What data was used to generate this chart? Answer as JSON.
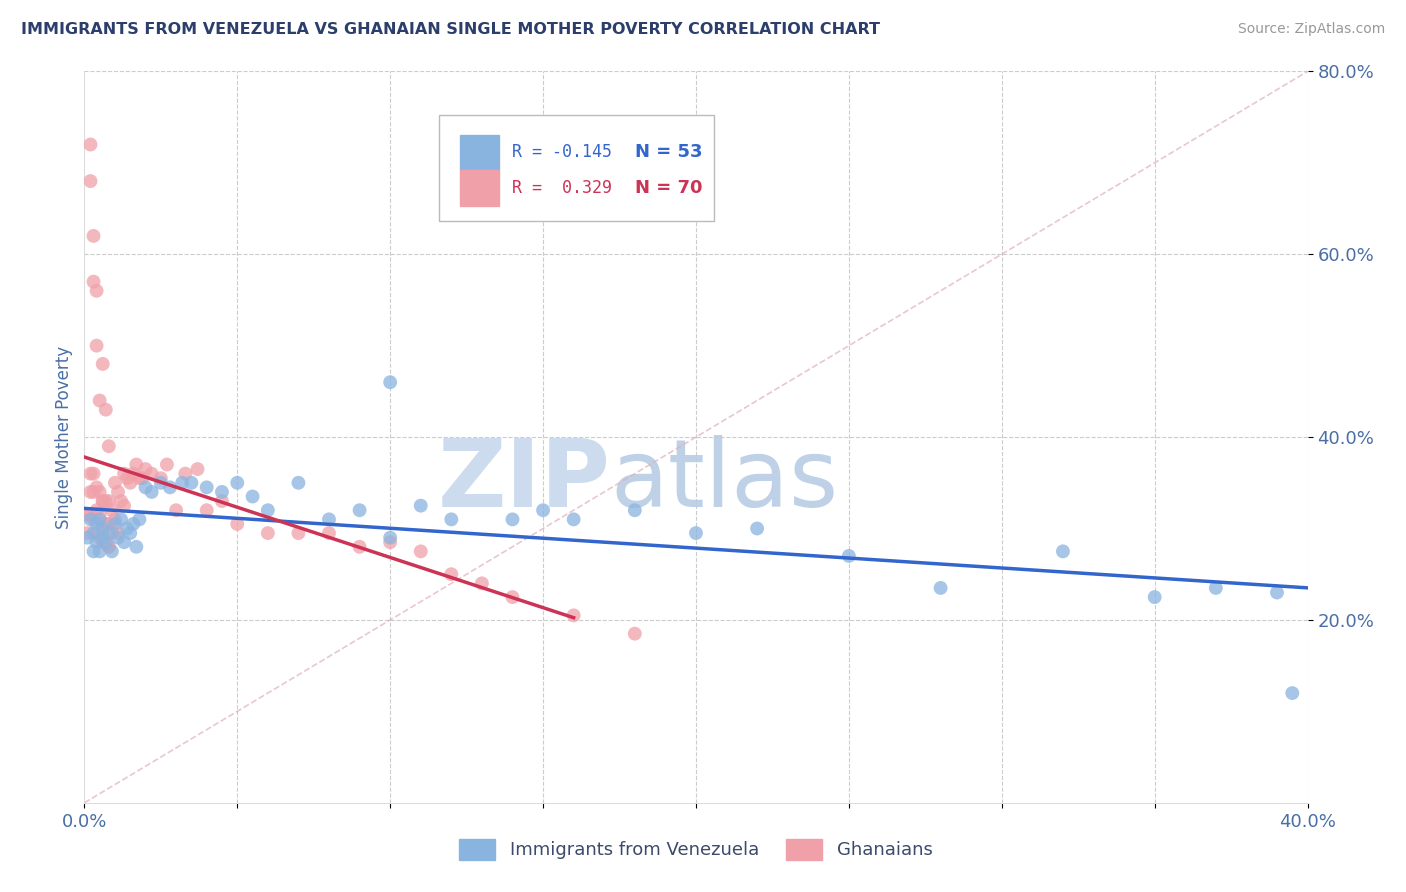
{
  "title": "IMMIGRANTS FROM VENEZUELA VS GHANAIAN SINGLE MOTHER POVERTY CORRELATION CHART",
  "source_text": "Source: ZipAtlas.com",
  "ylabel": "Single Mother Poverty",
  "xlim": [
    0.0,
    0.4
  ],
  "ylim": [
    0.0,
    0.8
  ],
  "xticks": [
    0.0,
    0.05,
    0.1,
    0.15,
    0.2,
    0.25,
    0.3,
    0.35,
    0.4
  ],
  "yticks": [
    0.2,
    0.4,
    0.6,
    0.8
  ],
  "ytick_labels": [
    "20.0%",
    "40.0%",
    "60.0%",
    "80.0%"
  ],
  "xtick_labels": [
    "0.0%",
    "",
    "",
    "",
    "",
    "",
    "",
    "",
    "40.0%"
  ],
  "color_blue": "#8ab4e0",
  "color_pink": "#f0a0a8",
  "color_trend_blue": "#3366cc",
  "color_trend_pink": "#cc3355",
  "color_tick_label": "#4a6fa5",
  "color_ylabel": "#4a6fa5",
  "color_grid": "#cccccc",
  "color_diagonal": "#e0b0b8",
  "watermark_zip": "ZIP",
  "watermark_atlas": "atlas",
  "watermark_color": "#d8e4f0",
  "blue_x": [
    0.001,
    0.002,
    0.003,
    0.003,
    0.004,
    0.004,
    0.005,
    0.005,
    0.006,
    0.006,
    0.007,
    0.008,
    0.009,
    0.01,
    0.011,
    0.012,
    0.013,
    0.014,
    0.015,
    0.016,
    0.017,
    0.018,
    0.02,
    0.022,
    0.025,
    0.028,
    0.032,
    0.035,
    0.04,
    0.045,
    0.05,
    0.055,
    0.06,
    0.07,
    0.08,
    0.09,
    0.1,
    0.11,
    0.12,
    0.14,
    0.15,
    0.16,
    0.18,
    0.2,
    0.22,
    0.25,
    0.28,
    0.32,
    0.35,
    0.37,
    0.39,
    0.395,
    0.1
  ],
  "blue_y": [
    0.29,
    0.31,
    0.295,
    0.275,
    0.305,
    0.285,
    0.31,
    0.275,
    0.29,
    0.3,
    0.285,
    0.295,
    0.275,
    0.305,
    0.29,
    0.31,
    0.285,
    0.3,
    0.295,
    0.305,
    0.28,
    0.31,
    0.345,
    0.34,
    0.35,
    0.345,
    0.35,
    0.35,
    0.345,
    0.34,
    0.35,
    0.335,
    0.32,
    0.35,
    0.31,
    0.32,
    0.46,
    0.325,
    0.31,
    0.31,
    0.32,
    0.31,
    0.32,
    0.295,
    0.3,
    0.27,
    0.235,
    0.275,
    0.225,
    0.235,
    0.23,
    0.12,
    0.29
  ],
  "pink_x": [
    0.001,
    0.001,
    0.002,
    0.002,
    0.002,
    0.003,
    0.003,
    0.003,
    0.004,
    0.004,
    0.004,
    0.005,
    0.005,
    0.005,
    0.006,
    0.006,
    0.006,
    0.007,
    0.007,
    0.008,
    0.008,
    0.008,
    0.009,
    0.009,
    0.01,
    0.01,
    0.011,
    0.011,
    0.012,
    0.013,
    0.013,
    0.014,
    0.015,
    0.016,
    0.017,
    0.018,
    0.019,
    0.02,
    0.022,
    0.025,
    0.027,
    0.03,
    0.033,
    0.037,
    0.04,
    0.045,
    0.05,
    0.06,
    0.07,
    0.08,
    0.09,
    0.1,
    0.11,
    0.12,
    0.13,
    0.14,
    0.16,
    0.18,
    0.003,
    0.004,
    0.005,
    0.006,
    0.007,
    0.008,
    0.002,
    0.003,
    0.004,
    0.006,
    0.008,
    0.002
  ],
  "pink_y": [
    0.315,
    0.295,
    0.36,
    0.34,
    0.315,
    0.36,
    0.34,
    0.31,
    0.345,
    0.32,
    0.295,
    0.34,
    0.315,
    0.29,
    0.33,
    0.305,
    0.285,
    0.33,
    0.305,
    0.33,
    0.305,
    0.28,
    0.32,
    0.295,
    0.35,
    0.31,
    0.34,
    0.295,
    0.33,
    0.36,
    0.325,
    0.355,
    0.35,
    0.36,
    0.37,
    0.355,
    0.355,
    0.365,
    0.36,
    0.355,
    0.37,
    0.32,
    0.36,
    0.365,
    0.32,
    0.33,
    0.305,
    0.295,
    0.295,
    0.295,
    0.28,
    0.285,
    0.275,
    0.25,
    0.24,
    0.225,
    0.205,
    0.185,
    0.57,
    0.5,
    0.44,
    0.48,
    0.43,
    0.39,
    0.68,
    0.62,
    0.56,
    0.33,
    0.28,
    0.72
  ]
}
